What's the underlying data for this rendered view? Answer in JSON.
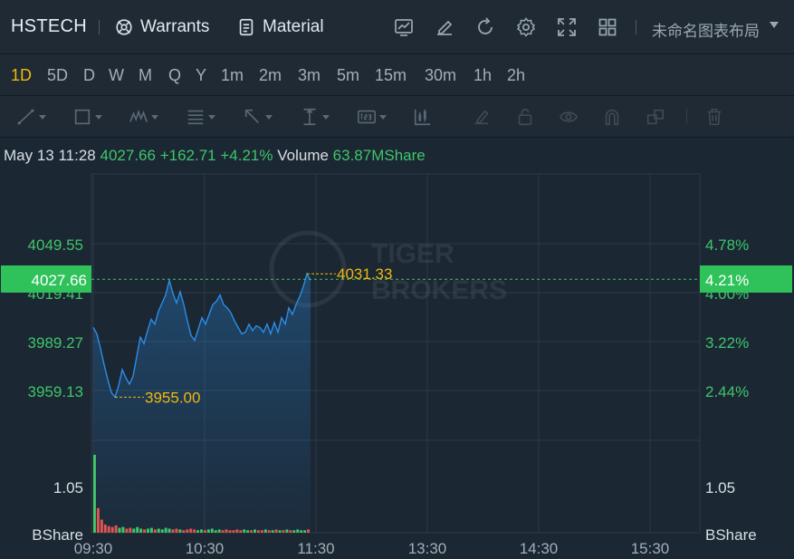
{
  "header": {
    "symbol": "HSTECH",
    "warrants_label": "Warrants",
    "material_label": "Material",
    "layout_name": "未命名图表布局"
  },
  "periods": [
    "1D",
    "5D",
    "D",
    "W",
    "M",
    "Q",
    "Y",
    "1m",
    "2m",
    "3m",
    "5m",
    "15m",
    "30m",
    "1h",
    "2h"
  ],
  "active_period": "1D",
  "quote": {
    "datetime": "May 13 11:28",
    "price": "4027.66",
    "change": "+162.71",
    "change_pct": "+4.21%",
    "volume_label": "Volume",
    "volume": "63.87MShare"
  },
  "watermark": [
    "TIGER",
    "BROKERS"
  ],
  "colors": {
    "up": "#3fc56b",
    "down": "#e2544f",
    "accent": "#f0b90b",
    "line": "#2b8de6"
  },
  "chart_data": {
    "type": "line",
    "x_ticks": [
      "09:30",
      "10:30",
      "11:30",
      "13:30",
      "14:30",
      "15:30"
    ],
    "price_ticks": [
      "4049.55",
      "4019.41",
      "3989.27",
      "3959.13"
    ],
    "pct_ticks": [
      "4.78%",
      "4.00%",
      "3.22%",
      "2.44%"
    ],
    "current_price": "4027.66",
    "current_pct": "4.21%",
    "high_label": "4031.33",
    "low_label": "3955.00",
    "volume_tick": "1.05",
    "volume_unit": "BShare",
    "volume_tick_right": "1.05",
    "volume_unit_right": "BShare",
    "price_series": [
      3998,
      3994,
      3985,
      3975,
      3966,
      3958,
      3955,
      3962,
      3972,
      3967,
      3963,
      3968,
      3980,
      3992,
      3988,
      3996,
      4003,
      4000,
      4008,
      4013,
      4018,
      4027,
      4019,
      4013,
      4020,
      4012,
      4002,
      3993,
      3990,
      3997,
      4004,
      4000,
      4006,
      4012,
      4014,
      4018,
      4012,
      4010,
      4007,
      4002,
      3998,
      3994,
      3995,
      4000,
      3996,
      3999,
      3998,
      3995,
      4000,
      3994,
      4001,
      3995,
      4004,
      4000,
      4010,
      4006,
      4012,
      4017,
      4023,
      4031,
      4027
    ],
    "volume_series": [
      0.95,
      0.3,
      0.16,
      0.1,
      0.08,
      0.07,
      0.09,
      0.06,
      0.07,
      0.05,
      0.06,
      0.05,
      0.07,
      0.05,
      0.04,
      0.05,
      0.06,
      0.04,
      0.05,
      0.04,
      0.06,
      0.05,
      0.04,
      0.05,
      0.04,
      0.03,
      0.04,
      0.05,
      0.04,
      0.03,
      0.04,
      0.03,
      0.04,
      0.05,
      0.03,
      0.04,
      0.03,
      0.04,
      0.03,
      0.03,
      0.04,
      0.03,
      0.04,
      0.03,
      0.03,
      0.04,
      0.03,
      0.03,
      0.04,
      0.03,
      0.03,
      0.04,
      0.03,
      0.03,
      0.04,
      0.03,
      0.03,
      0.04,
      0.03,
      0.03,
      0.04
    ]
  }
}
